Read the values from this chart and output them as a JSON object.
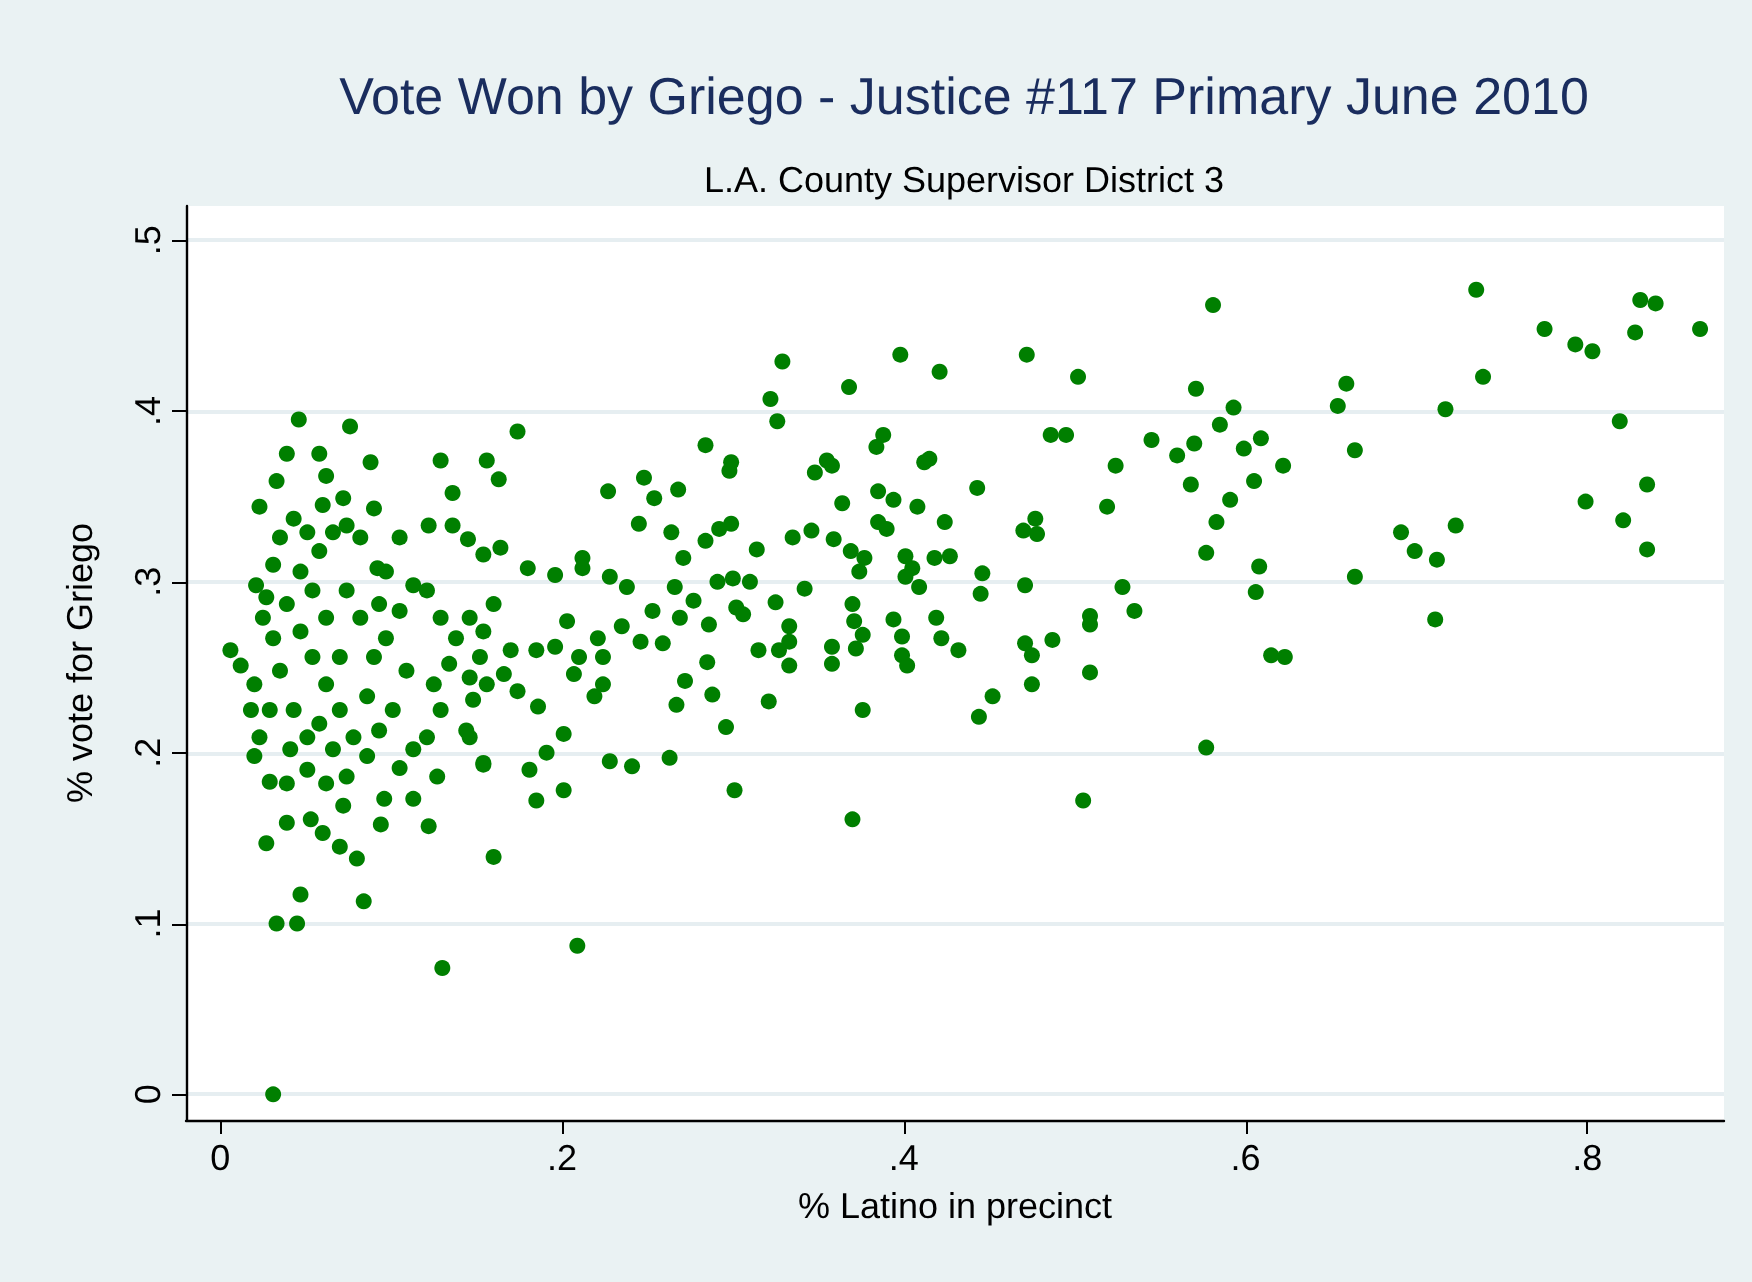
{
  "chart_data": {
    "type": "scatter",
    "title": "Vote Won by Griego - Justice #117 Primary June 2010",
    "subtitle": "L.A. County Supervisor District 3",
    "xlabel": "% Latino in precinct",
    "ylabel": "% vote for Griego",
    "xlim": [
      -0.02,
      0.88
    ],
    "ylim": [
      -0.015,
      0.52
    ],
    "xticks": [
      0,
      {
        "value": 0.2,
        "label": ".2"
      },
      {
        "value": 0.4,
        "label": ".4"
      },
      {
        "value": 0.6,
        "label": ".6"
      },
      {
        "value": 0.8,
        "label": ".8"
      }
    ],
    "yticks": [
      0,
      {
        "value": 0.1,
        "label": ".1"
      },
      {
        "value": 0.2,
        "label": ".2"
      },
      {
        "value": 0.3,
        "label": ".3"
      },
      {
        "value": 0.4,
        "label": ".4"
      },
      {
        "value": 0.5,
        "label": ".5"
      }
    ],
    "grid": "y",
    "marker": "circle",
    "series": [
      {
        "color": "#007f00",
        "x": [
          0.031,
          0.033,
          0.045,
          0.047,
          0.027,
          0.084,
          0.13,
          0.209,
          0.16,
          0.046,
          0.076,
          0.174,
          0.039,
          0.058,
          0.088,
          0.129,
          0.156,
          0.163,
          0.136,
          0.023,
          0.062,
          0.072,
          0.033,
          0.006,
          0.012,
          0.02,
          0.029,
          0.039,
          0.053,
          0.06,
          0.07,
          0.08,
          0.094,
          0.113,
          0.122,
          0.127,
          0.072,
          0.096,
          0.105,
          0.181,
          0.185,
          0.201,
          0.191,
          0.201,
          0.154,
          0.146,
          0.228,
          0.241,
          0.263,
          0.267,
          0.272,
          0.296,
          0.301,
          0.219,
          0.224,
          0.207,
          0.174,
          0.186,
          0.17,
          0.166,
          0.185,
          0.196,
          0.21,
          0.221,
          0.224,
          0.203,
          0.212,
          0.212,
          0.228,
          0.238,
          0.235,
          0.246,
          0.253,
          0.259,
          0.269,
          0.277,
          0.286,
          0.288,
          0.285,
          0.291,
          0.3,
          0.302,
          0.227,
          0.248,
          0.254,
          0.268,
          0.245,
          0.264,
          0.271,
          0.284,
          0.299,
          0.298,
          0.299,
          0.284,
          0.292,
          0.266,
          0.196,
          0.18,
          0.164,
          0.154,
          0.145,
          0.136,
          0.122,
          0.105,
          0.09,
          0.092,
          0.16,
          0.146,
          0.154,
          0.152,
          0.146,
          0.156,
          0.148,
          0.144,
          0.154,
          0.113,
          0.121,
          0.129,
          0.125,
          0.134,
          0.138,
          0.129,
          0.121,
          0.113,
          0.105,
          0.109,
          0.101,
          0.093,
          0.086,
          0.074,
          0.062,
          0.051,
          0.039,
          0.021,
          0.025,
          0.02,
          0.018,
          0.023,
          0.031,
          0.035,
          0.043,
          0.051,
          0.058,
          0.066,
          0.074,
          0.082,
          0.039,
          0.047,
          0.054,
          0.062,
          0.07,
          0.035,
          0.043,
          0.051,
          0.058,
          0.066,
          0.078,
          0.086,
          0.09,
          0.082,
          0.074,
          0.093,
          0.097,
          0.031,
          0.054,
          0.062,
          0.047,
          0.07,
          0.041,
          0.029,
          0.027,
          0.06,
          0.097,
          0.329,
          0.322,
          0.326,
          0.368,
          0.398,
          0.421,
          0.472,
          0.502,
          0.581,
          0.571,
          0.593,
          0.585,
          0.486,
          0.495,
          0.545,
          0.57,
          0.56,
          0.524,
          0.599,
          0.609,
          0.622,
          0.568,
          0.605,
          0.591,
          0.583,
          0.577,
          0.608,
          0.606,
          0.615,
          0.623,
          0.577,
          0.654,
          0.659,
          0.664,
          0.664,
          0.691,
          0.699,
          0.712,
          0.723,
          0.711,
          0.717,
          0.735,
          0.739,
          0.775,
          0.793,
          0.803,
          0.819,
          0.799,
          0.821,
          0.835,
          0.835,
          0.828,
          0.831,
          0.84,
          0.866,
          0.443,
          0.519,
          0.47,
          0.478,
          0.477,
          0.471,
          0.528,
          0.535,
          0.509,
          0.509,
          0.509,
          0.505,
          0.487,
          0.471,
          0.475,
          0.475,
          0.452,
          0.444,
          0.446,
          0.445,
          0.376,
          0.37,
          0.321,
          0.385,
          0.394,
          0.408,
          0.424,
          0.385,
          0.39,
          0.364,
          0.388,
          0.384,
          0.355,
          0.358,
          0.348,
          0.412,
          0.415,
          0.346,
          0.335,
          0.359,
          0.314,
          0.369,
          0.377,
          0.401,
          0.418,
          0.427,
          0.374,
          0.405,
          0.401,
          0.409,
          0.342,
          0.31,
          0.325,
          0.37,
          0.371,
          0.376,
          0.394,
          0.419,
          0.399,
          0.422,
          0.432,
          0.372,
          0.358,
          0.358,
          0.333,
          0.333,
          0.333,
          0.327,
          0.315,
          0.399,
          0.402,
          0.306
        ],
        "values": [
          0.0,
          0.1,
          0.1,
          0.117,
          0.147,
          0.113,
          0.074,
          0.087,
          0.139,
          0.395,
          0.391,
          0.388,
          0.375,
          0.375,
          0.37,
          0.371,
          0.371,
          0.36,
          0.352,
          0.344,
          0.362,
          0.349,
          0.359,
          0.26,
          0.251,
          0.198,
          0.183,
          0.159,
          0.161,
          0.153,
          0.145,
          0.138,
          0.158,
          0.173,
          0.157,
          0.186,
          0.169,
          0.173,
          0.191,
          0.19,
          0.172,
          0.178,
          0.2,
          0.211,
          0.193,
          0.209,
          0.195,
          0.192,
          0.197,
          0.228,
          0.242,
          0.215,
          0.178,
          0.233,
          0.24,
          0.246,
          0.236,
          0.227,
          0.26,
          0.246,
          0.26,
          0.262,
          0.256,
          0.267,
          0.256,
          0.277,
          0.308,
          0.314,
          0.303,
          0.297,
          0.274,
          0.265,
          0.283,
          0.264,
          0.279,
          0.289,
          0.275,
          0.234,
          0.253,
          0.3,
          0.302,
          0.285,
          0.353,
          0.361,
          0.349,
          0.354,
          0.334,
          0.329,
          0.314,
          0.38,
          0.37,
          0.365,
          0.334,
          0.324,
          0.331,
          0.297,
          0.304,
          0.308,
          0.32,
          0.316,
          0.325,
          0.333,
          0.333,
          0.326,
          0.343,
          0.308,
          0.287,
          0.279,
          0.271,
          0.256,
          0.244,
          0.24,
          0.231,
          0.213,
          0.194,
          0.202,
          0.209,
          0.225,
          0.24,
          0.252,
          0.267,
          0.279,
          0.295,
          0.298,
          0.283,
          0.248,
          0.225,
          0.213,
          0.198,
          0.186,
          0.182,
          0.19,
          0.182,
          0.298,
          0.279,
          0.24,
          0.225,
          0.209,
          0.31,
          0.326,
          0.337,
          0.329,
          0.318,
          0.329,
          0.333,
          0.326,
          0.287,
          0.271,
          0.256,
          0.24,
          0.225,
          0.248,
          0.225,
          0.209,
          0.217,
          0.202,
          0.209,
          0.233,
          0.256,
          0.279,
          0.295,
          0.287,
          0.267,
          0.267,
          0.295,
          0.279,
          0.306,
          0.256,
          0.202,
          0.225,
          0.291,
          0.345,
          0.306,
          0.429,
          0.407,
          0.394,
          0.414,
          0.433,
          0.423,
          0.433,
          0.42,
          0.462,
          0.413,
          0.402,
          0.392,
          0.386,
          0.386,
          0.383,
          0.381,
          0.374,
          0.368,
          0.378,
          0.384,
          0.368,
          0.357,
          0.359,
          0.348,
          0.335,
          0.317,
          0.309,
          0.294,
          0.257,
          0.256,
          0.203,
          0.403,
          0.416,
          0.377,
          0.303,
          0.329,
          0.318,
          0.313,
          0.333,
          0.278,
          0.401,
          0.471,
          0.42,
          0.448,
          0.439,
          0.435,
          0.394,
          0.347,
          0.336,
          0.357,
          0.319,
          0.446,
          0.465,
          0.463,
          0.448,
          0.355,
          0.344,
          0.33,
          0.328,
          0.337,
          0.298,
          0.297,
          0.283,
          0.28,
          0.275,
          0.247,
          0.172,
          0.266,
          0.264,
          0.257,
          0.24,
          0.233,
          0.221,
          0.305,
          0.293,
          0.225,
          0.161,
          0.23,
          0.353,
          0.348,
          0.344,
          0.335,
          0.335,
          0.331,
          0.346,
          0.386,
          0.379,
          0.371,
          0.368,
          0.364,
          0.37,
          0.372,
          0.33,
          0.326,
          0.325,
          0.319,
          0.318,
          0.314,
          0.315,
          0.314,
          0.315,
          0.306,
          0.308,
          0.303,
          0.297,
          0.296,
          0.3,
          0.288,
          0.287,
          0.277,
          0.269,
          0.278,
          0.279,
          0.268,
          0.267,
          0.26,
          0.261,
          0.262,
          0.252,
          0.274,
          0.265,
          0.251,
          0.26,
          0.26,
          0.257,
          0.251,
          0.281
        ]
      }
    ]
  }
}
